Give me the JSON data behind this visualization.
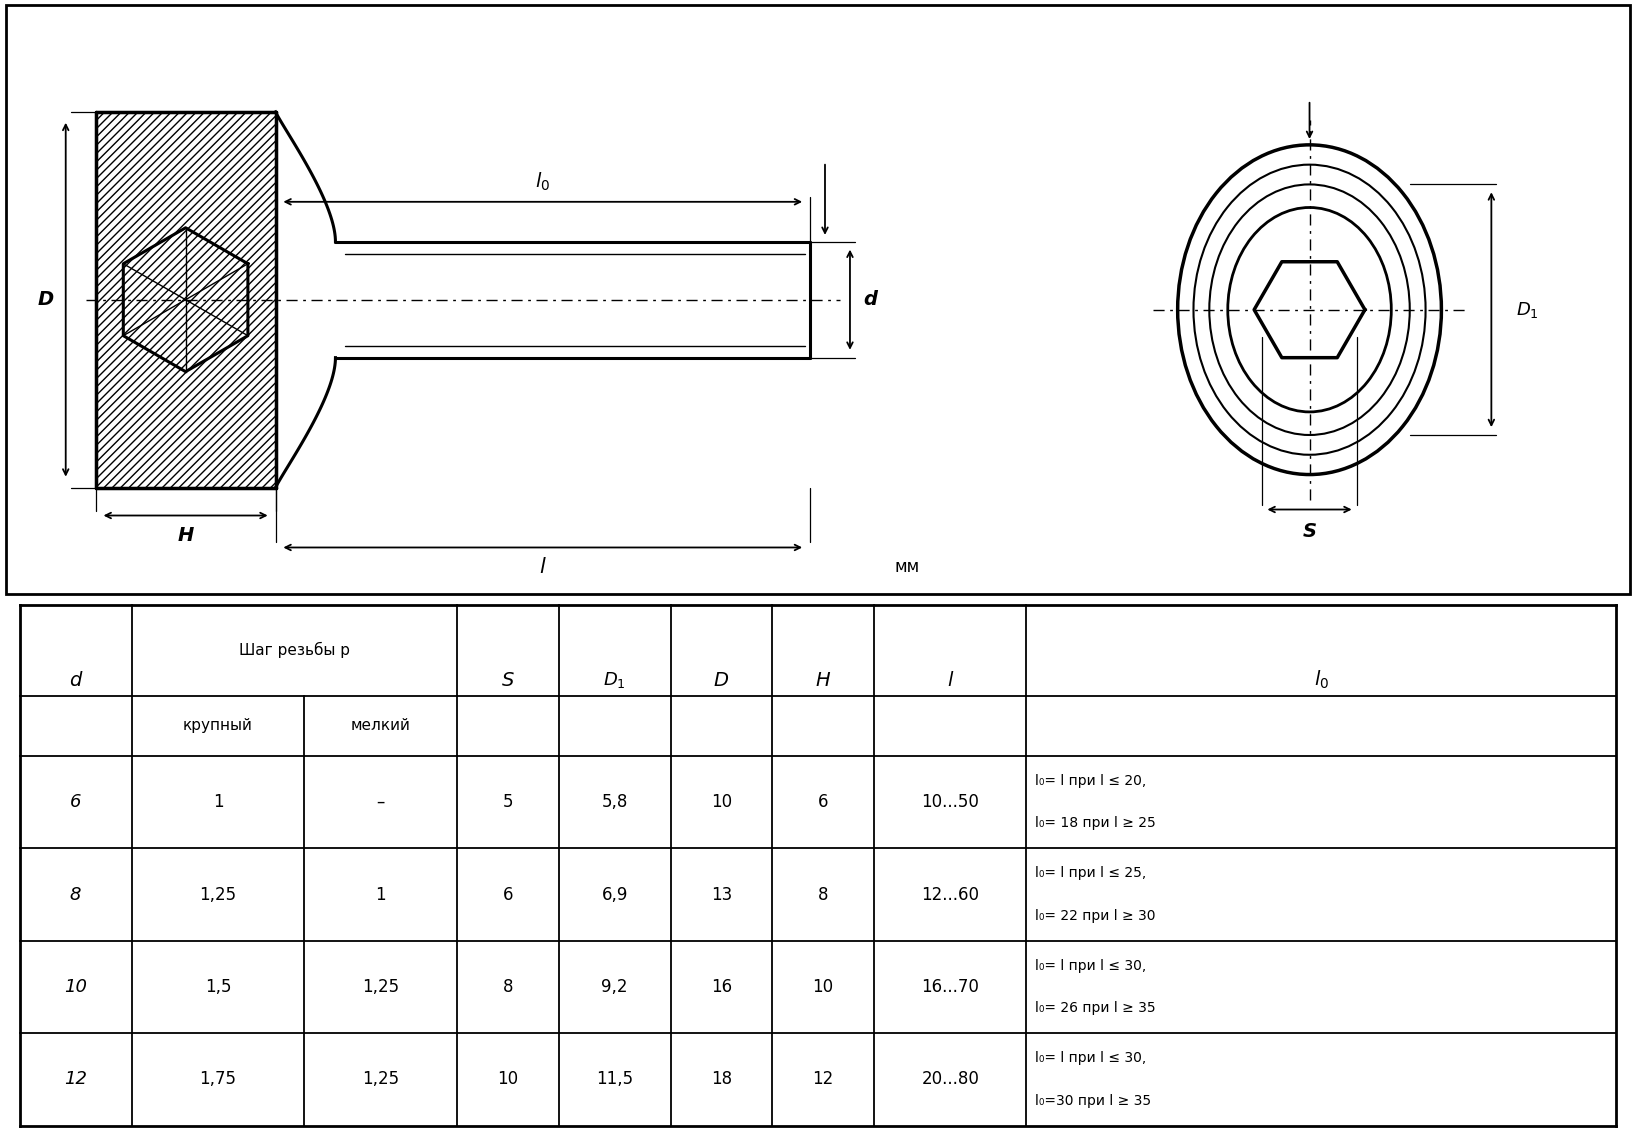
{
  "bg_color": "#ffffff",
  "line_color": "#000000",
  "text_color": "#000000",
  "table_rows": [
    [
      "6",
      "1",
      "–",
      "5",
      "5,8",
      "10",
      "6",
      "10...50",
      "l₀= l при l ≤ 20,",
      "l₀= 18 при l ≥ 25"
    ],
    [
      "8",
      "1,25",
      "1",
      "6",
      "6,9",
      "13",
      "8",
      "12...60",
      "l₀= l при l ≤ 25,",
      "l₀= 22 при l ≥ 30"
    ],
    [
      "10",
      "1,5",
      "1,25",
      "8",
      "9,2",
      "16",
      "10",
      "16...70",
      "l₀= l при l ≤ 30,",
      "l₀= 26 при l ≥ 35"
    ],
    [
      "12",
      "1,75",
      "1,25",
      "10",
      "11,5",
      "18",
      "12",
      "20...80",
      "l₀= l при l ≤ 30,",
      "l₀=30 при l ≥ 35"
    ]
  ],
  "col_labels": [
    "d",
    "Шаг резьбы p",
    "",
    "S",
    "D1",
    "D",
    "H",
    "l",
    "l0"
  ],
  "col_sub": [
    "",
    "крупный",
    "мелкий",
    "",
    "",
    "",
    "",
    "",
    ""
  ],
  "col_relw": [
    5.5,
    8.5,
    7.5,
    5.0,
    5.5,
    5.0,
    5.0,
    7.5,
    29.0
  ],
  "mm_label": "мм",
  "fig_width": 16.36,
  "fig_height": 11.31,
  "dpi": 100
}
